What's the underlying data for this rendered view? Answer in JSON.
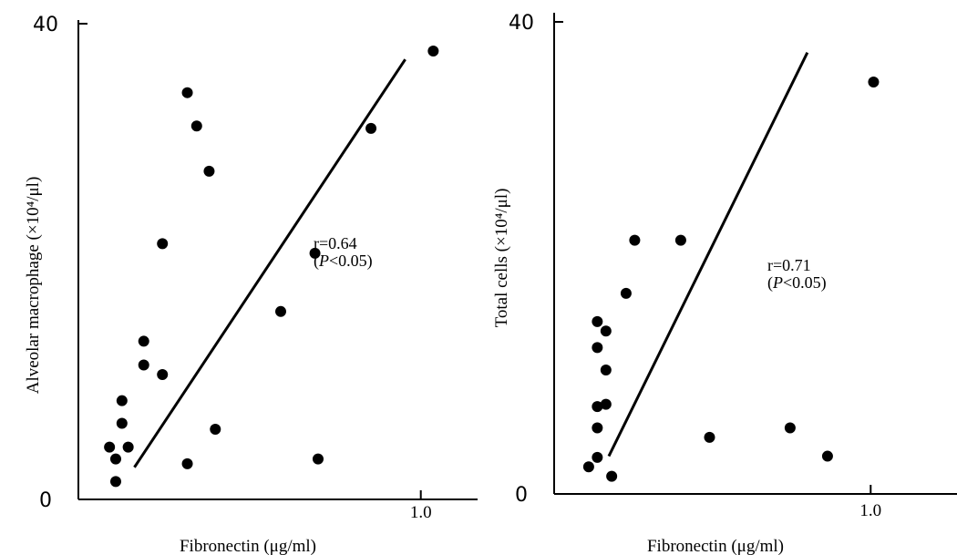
{
  "chart_data": [
    {
      "type": "scatter",
      "title": "",
      "xlabel": "Fibronectin (μg/ml)",
      "ylabel": "Alveolar macrophage (×10⁴/μl)",
      "xlim": [
        -0.1,
        1.2
      ],
      "ylim": [
        0,
        40
      ],
      "x_ticks": [
        {
          "v": 1.0,
          "label": "1.0"
        }
      ],
      "y_ticks": [
        {
          "v": 0,
          "label": "0"
        },
        {
          "v": 40,
          "label": "40"
        }
      ],
      "points": [
        {
          "x": 0.25,
          "y": 34.2
        },
        {
          "x": 0.28,
          "y": 31.4
        },
        {
          "x": 0.32,
          "y": 27.6
        },
        {
          "x": 0.17,
          "y": 21.5
        },
        {
          "x": 0.66,
          "y": 20.7
        },
        {
          "x": 0.55,
          "y": 15.8
        },
        {
          "x": 0.11,
          "y": 13.3
        },
        {
          "x": 0.11,
          "y": 11.3
        },
        {
          "x": 0.17,
          "y": 10.5
        },
        {
          "x": 0.04,
          "y": 8.3
        },
        {
          "x": 0.04,
          "y": 6.4
        },
        {
          "x": 0.0,
          "y": 4.4
        },
        {
          "x": 0.02,
          "y": 3.4
        },
        {
          "x": 0.02,
          "y": 1.5
        },
        {
          "x": 0.06,
          "y": 4.4
        },
        {
          "x": 0.34,
          "y": 5.9
        },
        {
          "x": 0.84,
          "y": 31.2
        },
        {
          "x": 1.04,
          "y": 37.7
        },
        {
          "x": 0.67,
          "y": 3.4
        },
        {
          "x": 0.25,
          "y": 3.0
        }
      ],
      "fit_line": {
        "x1": 0.08,
        "y1": 2.7,
        "x2": 0.95,
        "y2": 37.0
      },
      "annotation": {
        "r_text": "r=0.64",
        "p_open": "(",
        "p_italic": "P",
        "p_rest": "<0.05)"
      }
    },
    {
      "type": "scatter",
      "title": "",
      "xlabel": "Fibronectin (μg/ml)",
      "ylabel": "Total cells (×10⁴/μl)",
      "xlim": [
        -0.1,
        1.3
      ],
      "ylim": [
        0,
        40
      ],
      "x_ticks": [
        {
          "v": 1.0,
          "label": "1.0"
        }
      ],
      "y_ticks": [
        {
          "v": 0,
          "label": "0"
        },
        {
          "v": 40,
          "label": "40"
        }
      ],
      "points": [
        {
          "x": 1.01,
          "y": 34.9
        },
        {
          "x": 0.18,
          "y": 21.5
        },
        {
          "x": 0.34,
          "y": 21.5
        },
        {
          "x": 0.15,
          "y": 17.0
        },
        {
          "x": 0.05,
          "y": 14.6
        },
        {
          "x": 0.08,
          "y": 13.8
        },
        {
          "x": 0.05,
          "y": 12.4
        },
        {
          "x": 0.08,
          "y": 10.5
        },
        {
          "x": 0.05,
          "y": 7.4
        },
        {
          "x": 0.08,
          "y": 7.6
        },
        {
          "x": 0.05,
          "y": 5.6
        },
        {
          "x": 0.05,
          "y": 3.1
        },
        {
          "x": 0.02,
          "y": 2.3
        },
        {
          "x": 0.1,
          "y": 1.5
        },
        {
          "x": 0.44,
          "y": 4.8
        },
        {
          "x": 0.72,
          "y": 5.6
        },
        {
          "x": 0.85,
          "y": 3.2
        }
      ],
      "fit_line": {
        "x1": 0.09,
        "y1": 3.2,
        "x2": 0.78,
        "y2": 37.4
      },
      "annotation": {
        "r_text": "r=0.71",
        "p_open": "(",
        "p_italic": "P",
        "p_rest": "<0.05)"
      }
    }
  ]
}
